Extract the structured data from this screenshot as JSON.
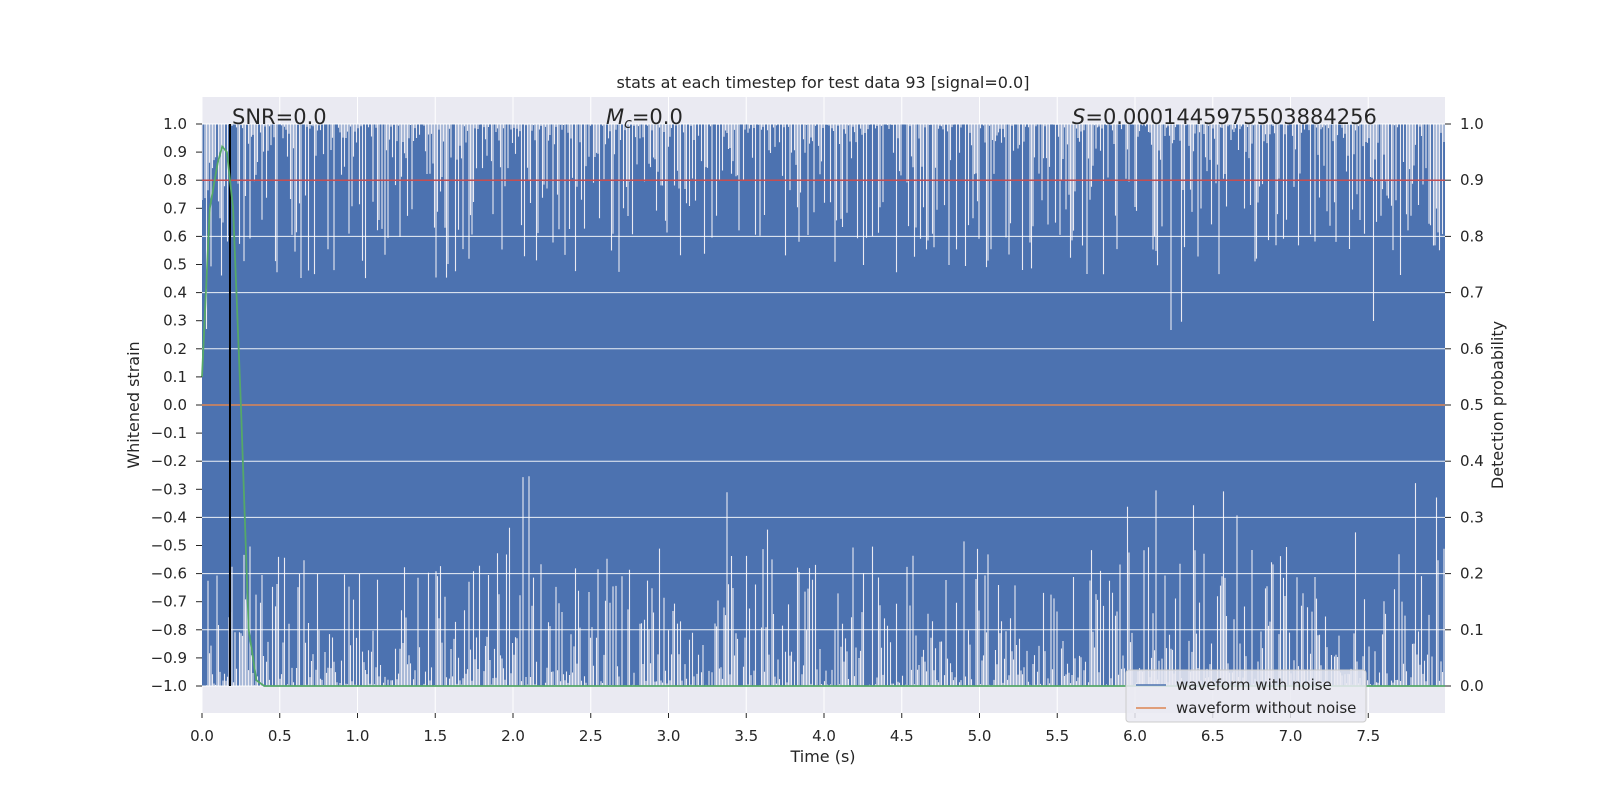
{
  "chart_data": {
    "type": "line",
    "title": "stats at each timestep for test data 93 [signal=0.0]",
    "xlabel": "Time (s)",
    "ylabel": "Whitened strain",
    "y2label": "Detection probability",
    "xlim": [
      0.0,
      8.0
    ],
    "ylim": [
      -1.0,
      1.0
    ],
    "y2lim": [
      0.0,
      1.0
    ],
    "x_ticks": [
      "0.0",
      "0.5",
      "1.0",
      "1.5",
      "2.0",
      "2.5",
      "3.0",
      "3.5",
      "4.0",
      "4.5",
      "5.0",
      "5.5",
      "6.0",
      "6.5",
      "7.0",
      "7.5"
    ],
    "y_ticks": [
      "1.0",
      "0.9",
      "0.8",
      "0.7",
      "0.6",
      "0.5",
      "0.4",
      "0.3",
      "0.2",
      "0.1",
      "0.0",
      "−0.1",
      "−0.2",
      "−0.3",
      "−0.4",
      "−0.5",
      "−0.6",
      "−0.7",
      "−0.8",
      "−0.9",
      "−1.0"
    ],
    "y2_ticks": [
      "1.0",
      "0.9",
      "0.8",
      "0.7",
      "0.6",
      "0.5",
      "0.4",
      "0.3",
      "0.2",
      "0.1",
      "0.0"
    ],
    "annotations": {
      "snr": "SNR=0.0",
      "mc_symbol": "M",
      "mc_sub": "c",
      "mc_value": "=0.0",
      "s_symbol": "S",
      "s_value": "=0.0001445975503884256"
    },
    "series": [
      {
        "name": "waveform with noise",
        "color": "#4c72b0",
        "description_range": [
          -1.0,
          1.0
        ]
      },
      {
        "name": "waveform without noise",
        "color": "#dd8452",
        "value": 0.0
      },
      {
        "name": "detection probability",
        "color": "#55a868",
        "axis": "y2",
        "x": [
          0.0,
          0.05,
          0.1,
          0.13,
          0.16,
          0.2,
          0.25,
          0.3,
          0.35,
          0.4,
          8.0
        ],
        "y": [
          0.55,
          0.85,
          0.93,
          0.96,
          0.95,
          0.85,
          0.5,
          0.1,
          0.01,
          0.0,
          0.0
        ]
      }
    ],
    "threshold": {
      "value": 0.9,
      "axis": "y2",
      "color": "#c44e52"
    },
    "marker_line": {
      "x": 0.18,
      "color": "#000000"
    },
    "legend": {
      "position": "lower-right",
      "items": [
        {
          "label": "waveform with noise",
          "color": "#4c72b0"
        },
        {
          "label": "waveform without noise",
          "color": "#dd8452"
        }
      ]
    },
    "colors": {
      "plot_bg": "#eaeaf2",
      "grid": "#ffffff",
      "legend_bg": "#eaeaf2"
    }
  }
}
